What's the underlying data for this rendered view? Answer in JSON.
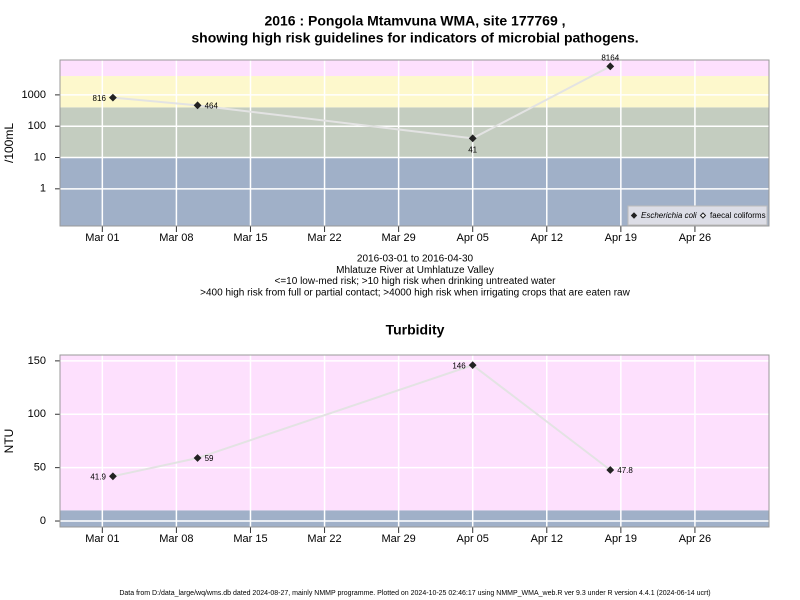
{
  "chart_data": [
    {
      "type": "line",
      "title": [
        "2016 : Pongola Mtamvuna WMA, site 177769 ,",
        "showing high risk guidelines for indicators of microbial pathogens."
      ],
      "y_label": "/100mL",
      "log_y": true,
      "x": [
        "2016-03-02",
        "2016-03-10",
        "2016-04-05",
        "2016-04-18"
      ],
      "series": [
        {
          "name": "Escherichia coli",
          "color": "#222222",
          "marker": "filled",
          "values": [
            816,
            464,
            41,
            8164
          ]
        },
        {
          "name": "faecal coliforms",
          "color": "#222222",
          "marker": "open",
          "values": [
            null,
            null,
            null,
            null
          ]
        }
      ],
      "line_color": "#e3e3e3",
      "xlim": [
        "2016-02-26",
        "2016-05-03"
      ],
      "xticks": [
        {
          "value": "2016-03-01",
          "label": "Mar 01"
        },
        {
          "value": "2016-03-08",
          "label": "Mar 08"
        },
        {
          "value": "2016-03-15",
          "label": "Mar 15"
        },
        {
          "value": "2016-03-22",
          "label": "Mar 22"
        },
        {
          "value": "2016-03-29",
          "label": "Mar 29"
        },
        {
          "value": "2016-04-05",
          "label": "Apr 05"
        },
        {
          "value": "2016-04-12",
          "label": "Apr 12"
        },
        {
          "value": "2016-04-19",
          "label": "Apr 19"
        },
        {
          "value": "2016-04-26",
          "label": "Apr 26"
        }
      ],
      "ylim": [
        0.065,
        13000
      ],
      "yticks": [
        1,
        10,
        100,
        1000
      ],
      "band_edges": [
        10,
        400,
        4000
      ],
      "band_colors": [
        "#a0b0c8",
        "#c4cdc0",
        "#fdf8cc",
        "#fde0fd"
      ],
      "grid": true,
      "legend": "bottom-right",
      "notes": [
        "2016-03-01 to 2016-04-30",
        "Mhlatuze River at Umhlatuze Valley",
        "<=10 low-med risk; >10 high risk when drinking untreated water",
        ">400 high risk from full or partial contact; >4000 high risk when irrigating crops that are eaten raw"
      ]
    },
    {
      "type": "line",
      "title": [
        "Turbidity"
      ],
      "y_label": "NTU",
      "log_y": false,
      "x": [
        "2016-03-02",
        "2016-03-10",
        "2016-04-05",
        "2016-04-18"
      ],
      "series": [
        {
          "name": "Turbidity",
          "color": "#222222",
          "marker": "filled",
          "values": [
            41.9,
            59,
            146,
            47.8
          ]
        }
      ],
      "line_color": "#e3e3e3",
      "xlim": [
        "2016-02-26",
        "2016-05-03"
      ],
      "xticks": [
        {
          "value": "2016-03-01",
          "label": "Mar 01"
        },
        {
          "value": "2016-03-08",
          "label": "Mar 08"
        },
        {
          "value": "2016-03-15",
          "label": "Mar 15"
        },
        {
          "value": "2016-03-22",
          "label": "Mar 22"
        },
        {
          "value": "2016-03-29",
          "label": "Mar 29"
        },
        {
          "value": "2016-04-05",
          "label": "Apr 05"
        },
        {
          "value": "2016-04-12",
          "label": "Apr 12"
        },
        {
          "value": "2016-04-19",
          "label": "Apr 19"
        },
        {
          "value": "2016-04-26",
          "label": "Apr 26"
        }
      ],
      "ylim": [
        -5.6,
        155.5
      ],
      "yticks": [
        0,
        50,
        100,
        150
      ],
      "band_edges": [
        10
      ],
      "band_colors": [
        "#a0b0c8",
        "#fde0fd"
      ],
      "grid": true
    }
  ],
  "footer": "Data from D:/data_large/wq/wms.db dated 2024-08-27, mainly NMMP programme. Plotted on 2024-10-25 02:46:17 using NMMP_WMA_web.R ver 9.3 under R version 4.4.1 (2024-06-14 ucrt)"
}
